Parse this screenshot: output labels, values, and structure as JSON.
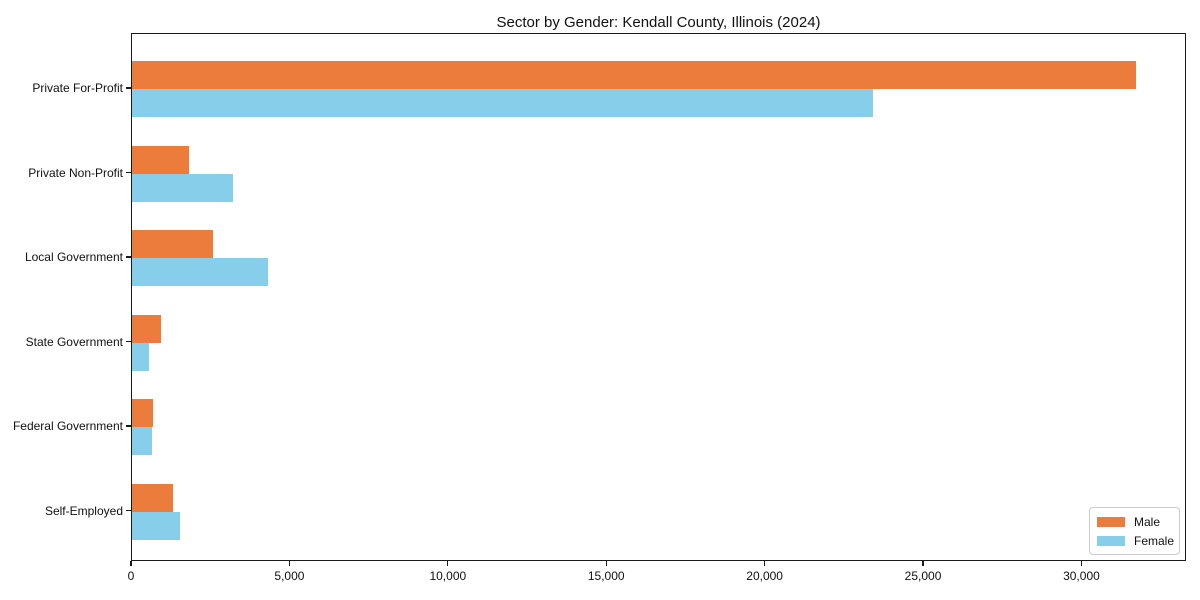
{
  "chart_data": {
    "type": "bar",
    "orientation": "horizontal",
    "title": "Sector by Gender: Kendall County, Illinois (2024)",
    "categories": [
      "Private For-Profit",
      "Private Non-Profit",
      "Local Government",
      "State Government",
      "Federal Government",
      "Self-Employed"
    ],
    "series": [
      {
        "name": "Male",
        "color": "#ec7c3b",
        "values": [
          31700,
          1800,
          2550,
          900,
          670,
          1300
        ]
      },
      {
        "name": "Female",
        "color": "#87ceeb",
        "values": [
          23400,
          3200,
          4300,
          550,
          630,
          1500
        ]
      }
    ],
    "xlabel": "",
    "ylabel": "",
    "xlim": [
      0,
      33300
    ],
    "xticks": [
      {
        "value": 0,
        "label": "0"
      },
      {
        "value": 5000,
        "label": "5,000"
      },
      {
        "value": 10000,
        "label": "10,000"
      },
      {
        "value": 15000,
        "label": "15,000"
      },
      {
        "value": 20000,
        "label": "20,000"
      },
      {
        "value": 25000,
        "label": "25,000"
      },
      {
        "value": 30000,
        "label": "30,000"
      }
    ],
    "grid": false,
    "legend": {
      "position": "lower right",
      "entries": [
        "Male",
        "Female"
      ]
    }
  },
  "colors": {
    "male": "#ec7c3b",
    "female": "#87ceeb",
    "axis": "#1a1a1a",
    "legend_border": "#cccccc",
    "background": "#ffffff"
  }
}
